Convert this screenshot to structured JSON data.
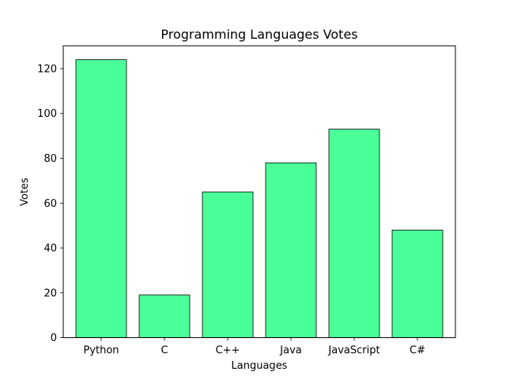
{
  "chart_data": {
    "type": "bar",
    "title": "Programming Languages Votes",
    "xlabel": "Languages",
    "ylabel": "Votes",
    "categories": [
      "Python",
      "C",
      "C++",
      "Java",
      "JavaScript",
      "C#"
    ],
    "values": [
      124,
      19,
      65,
      78,
      93,
      48
    ],
    "ylim": [
      0,
      130.2
    ],
    "yticks": [
      0,
      20,
      40,
      60,
      80,
      100,
      120
    ],
    "grid": false,
    "bar_color": "#4aff98",
    "edge_color": "#000000"
  }
}
